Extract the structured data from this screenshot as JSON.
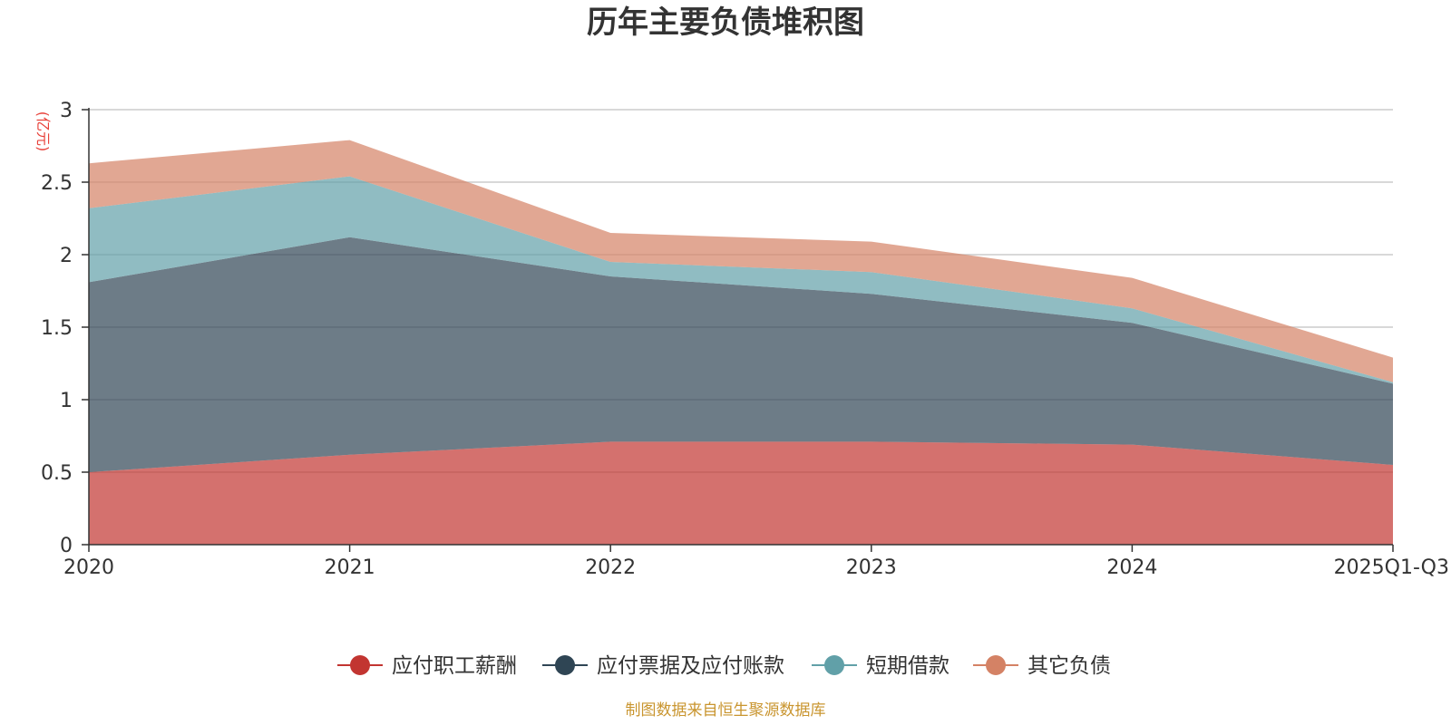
{
  "chart_data": {
    "type": "area",
    "stacked": true,
    "title": "历年主要负债堆积图",
    "y_unit": "(亿元)",
    "categories": [
      "2020",
      "2021",
      "2022",
      "2023",
      "2024",
      "2025Q1-Q3"
    ],
    "ylim": [
      0,
      3
    ],
    "yticks": [
      "0",
      "0.5",
      "1",
      "1.5",
      "2",
      "2.5",
      "3"
    ],
    "grid": true,
    "legend_position": "bottom",
    "series": [
      {
        "name": "应付职工薪酬",
        "color": "#c23531",
        "values": [
          0.5,
          0.62,
          0.71,
          0.71,
          0.69,
          0.55
        ]
      },
      {
        "name": "应付票据及应付账款",
        "color": "#2f4554",
        "values": [
          1.31,
          1.5,
          1.14,
          1.02,
          0.84,
          0.56
        ]
      },
      {
        "name": "短期借款",
        "color": "#61a0a8",
        "values": [
          0.51,
          0.42,
          0.1,
          0.15,
          0.1,
          0.01
        ]
      },
      {
        "name": "其它负债",
        "color": "#d48265",
        "values": [
          0.31,
          0.25,
          0.2,
          0.21,
          0.21,
          0.17
        ]
      }
    ],
    "source_note": "制图数据来自恒生聚源数据库",
    "colors": {
      "unit": "#e8413a",
      "source": "#c9952f",
      "axis": "#333333",
      "grid": "#cccccc"
    }
  }
}
